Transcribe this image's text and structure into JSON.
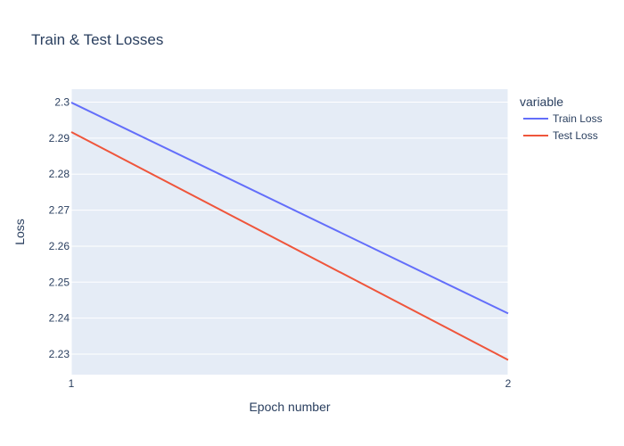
{
  "chart_data": {
    "type": "line",
    "title": "Train & Test Losses",
    "xlabel": "Epoch number",
    "ylabel": "Loss",
    "x": [
      1,
      2
    ],
    "x_ticks": [
      "1",
      "2"
    ],
    "xlim": [
      1,
      2
    ],
    "y_ticks": [
      "2.23",
      "2.24",
      "2.25",
      "2.26",
      "2.27",
      "2.28",
      "2.29",
      "2.3"
    ],
    "ylim": [
      2.2243,
      2.3036
    ],
    "grid": true,
    "legend": {
      "title": "variable",
      "placement": "top-right, outside plot"
    },
    "series": [
      {
        "name": "Train Loss",
        "color": "#636efa",
        "values": [
          2.2999,
          2.2413
        ]
      },
      {
        "name": "Test Loss",
        "color": "#EF553B",
        "values": [
          2.2917,
          2.2284
        ]
      }
    ],
    "colors": {
      "plot_background": "#e5ecf6",
      "grid": "#ffffff",
      "text": "#2a3f5f"
    }
  }
}
